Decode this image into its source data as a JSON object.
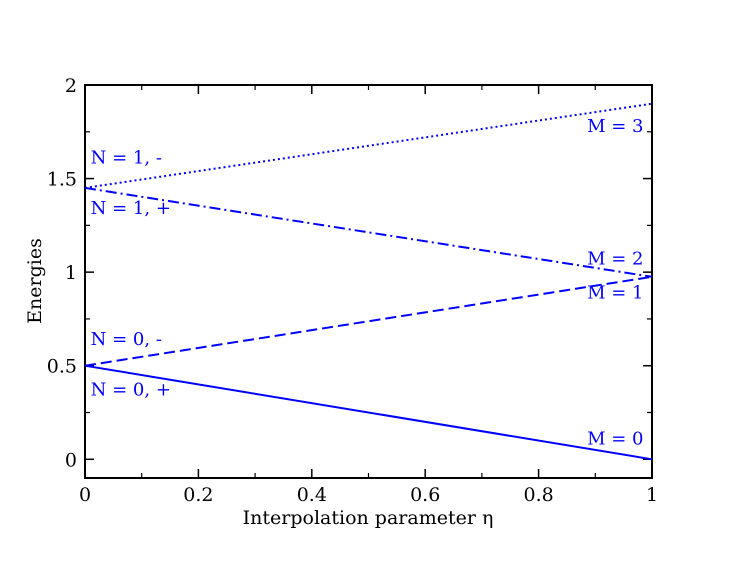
{
  "chart_data": {
    "type": "line",
    "title": "",
    "xlabel": "Interpolation parameter η",
    "ylabel": "Energies",
    "xlim": [
      0,
      1
    ],
    "ylim": [
      -0.1,
      2
    ],
    "x_ticks": [
      0,
      0.2,
      0.4,
      0.6,
      0.8,
      1
    ],
    "x_tick_labels": [
      "0",
      "0.2",
      "0.4",
      "0.6",
      "0.8",
      "1"
    ],
    "y_ticks": [
      0,
      0.5,
      1,
      1.5,
      2
    ],
    "y_tick_labels": [
      "0",
      "0.5",
      "1",
      "1.5",
      "2"
    ],
    "grid": false,
    "legend": "none",
    "line_color": "#0000ff",
    "series": [
      {
        "style": "solid",
        "x": [
          0,
          1
        ],
        "y": [
          0.5,
          0.0
        ]
      },
      {
        "style": "dashed",
        "x": [
          0,
          1
        ],
        "y": [
          0.5,
          0.975
        ]
      },
      {
        "style": "dashdot",
        "x": [
          0,
          1
        ],
        "y": [
          1.45,
          0.975
        ]
      },
      {
        "style": "dotted",
        "x": [
          0,
          1
        ],
        "y": [
          1.45,
          1.9
        ]
      }
    ],
    "annotations": [
      {
        "text": "N = 1, -",
        "x": 0.01,
        "y": 1.58,
        "anchor": "start"
      },
      {
        "text": "N = 1, +",
        "x": 0.01,
        "y": 1.31,
        "anchor": "start"
      },
      {
        "text": "N = 0, -",
        "x": 0.01,
        "y": 0.61,
        "anchor": "start"
      },
      {
        "text": "N = 0, +",
        "x": 0.01,
        "y": 0.34,
        "anchor": "start"
      },
      {
        "text": "M = 3",
        "x": 0.985,
        "y": 1.75,
        "anchor": "end"
      },
      {
        "text": "M = 2",
        "x": 0.985,
        "y": 1.04,
        "anchor": "end"
      },
      {
        "text": "M = 1",
        "x": 0.985,
        "y": 0.86,
        "anchor": "end"
      },
      {
        "text": "M = 0",
        "x": 0.985,
        "y": 0.08,
        "anchor": "end"
      }
    ]
  }
}
